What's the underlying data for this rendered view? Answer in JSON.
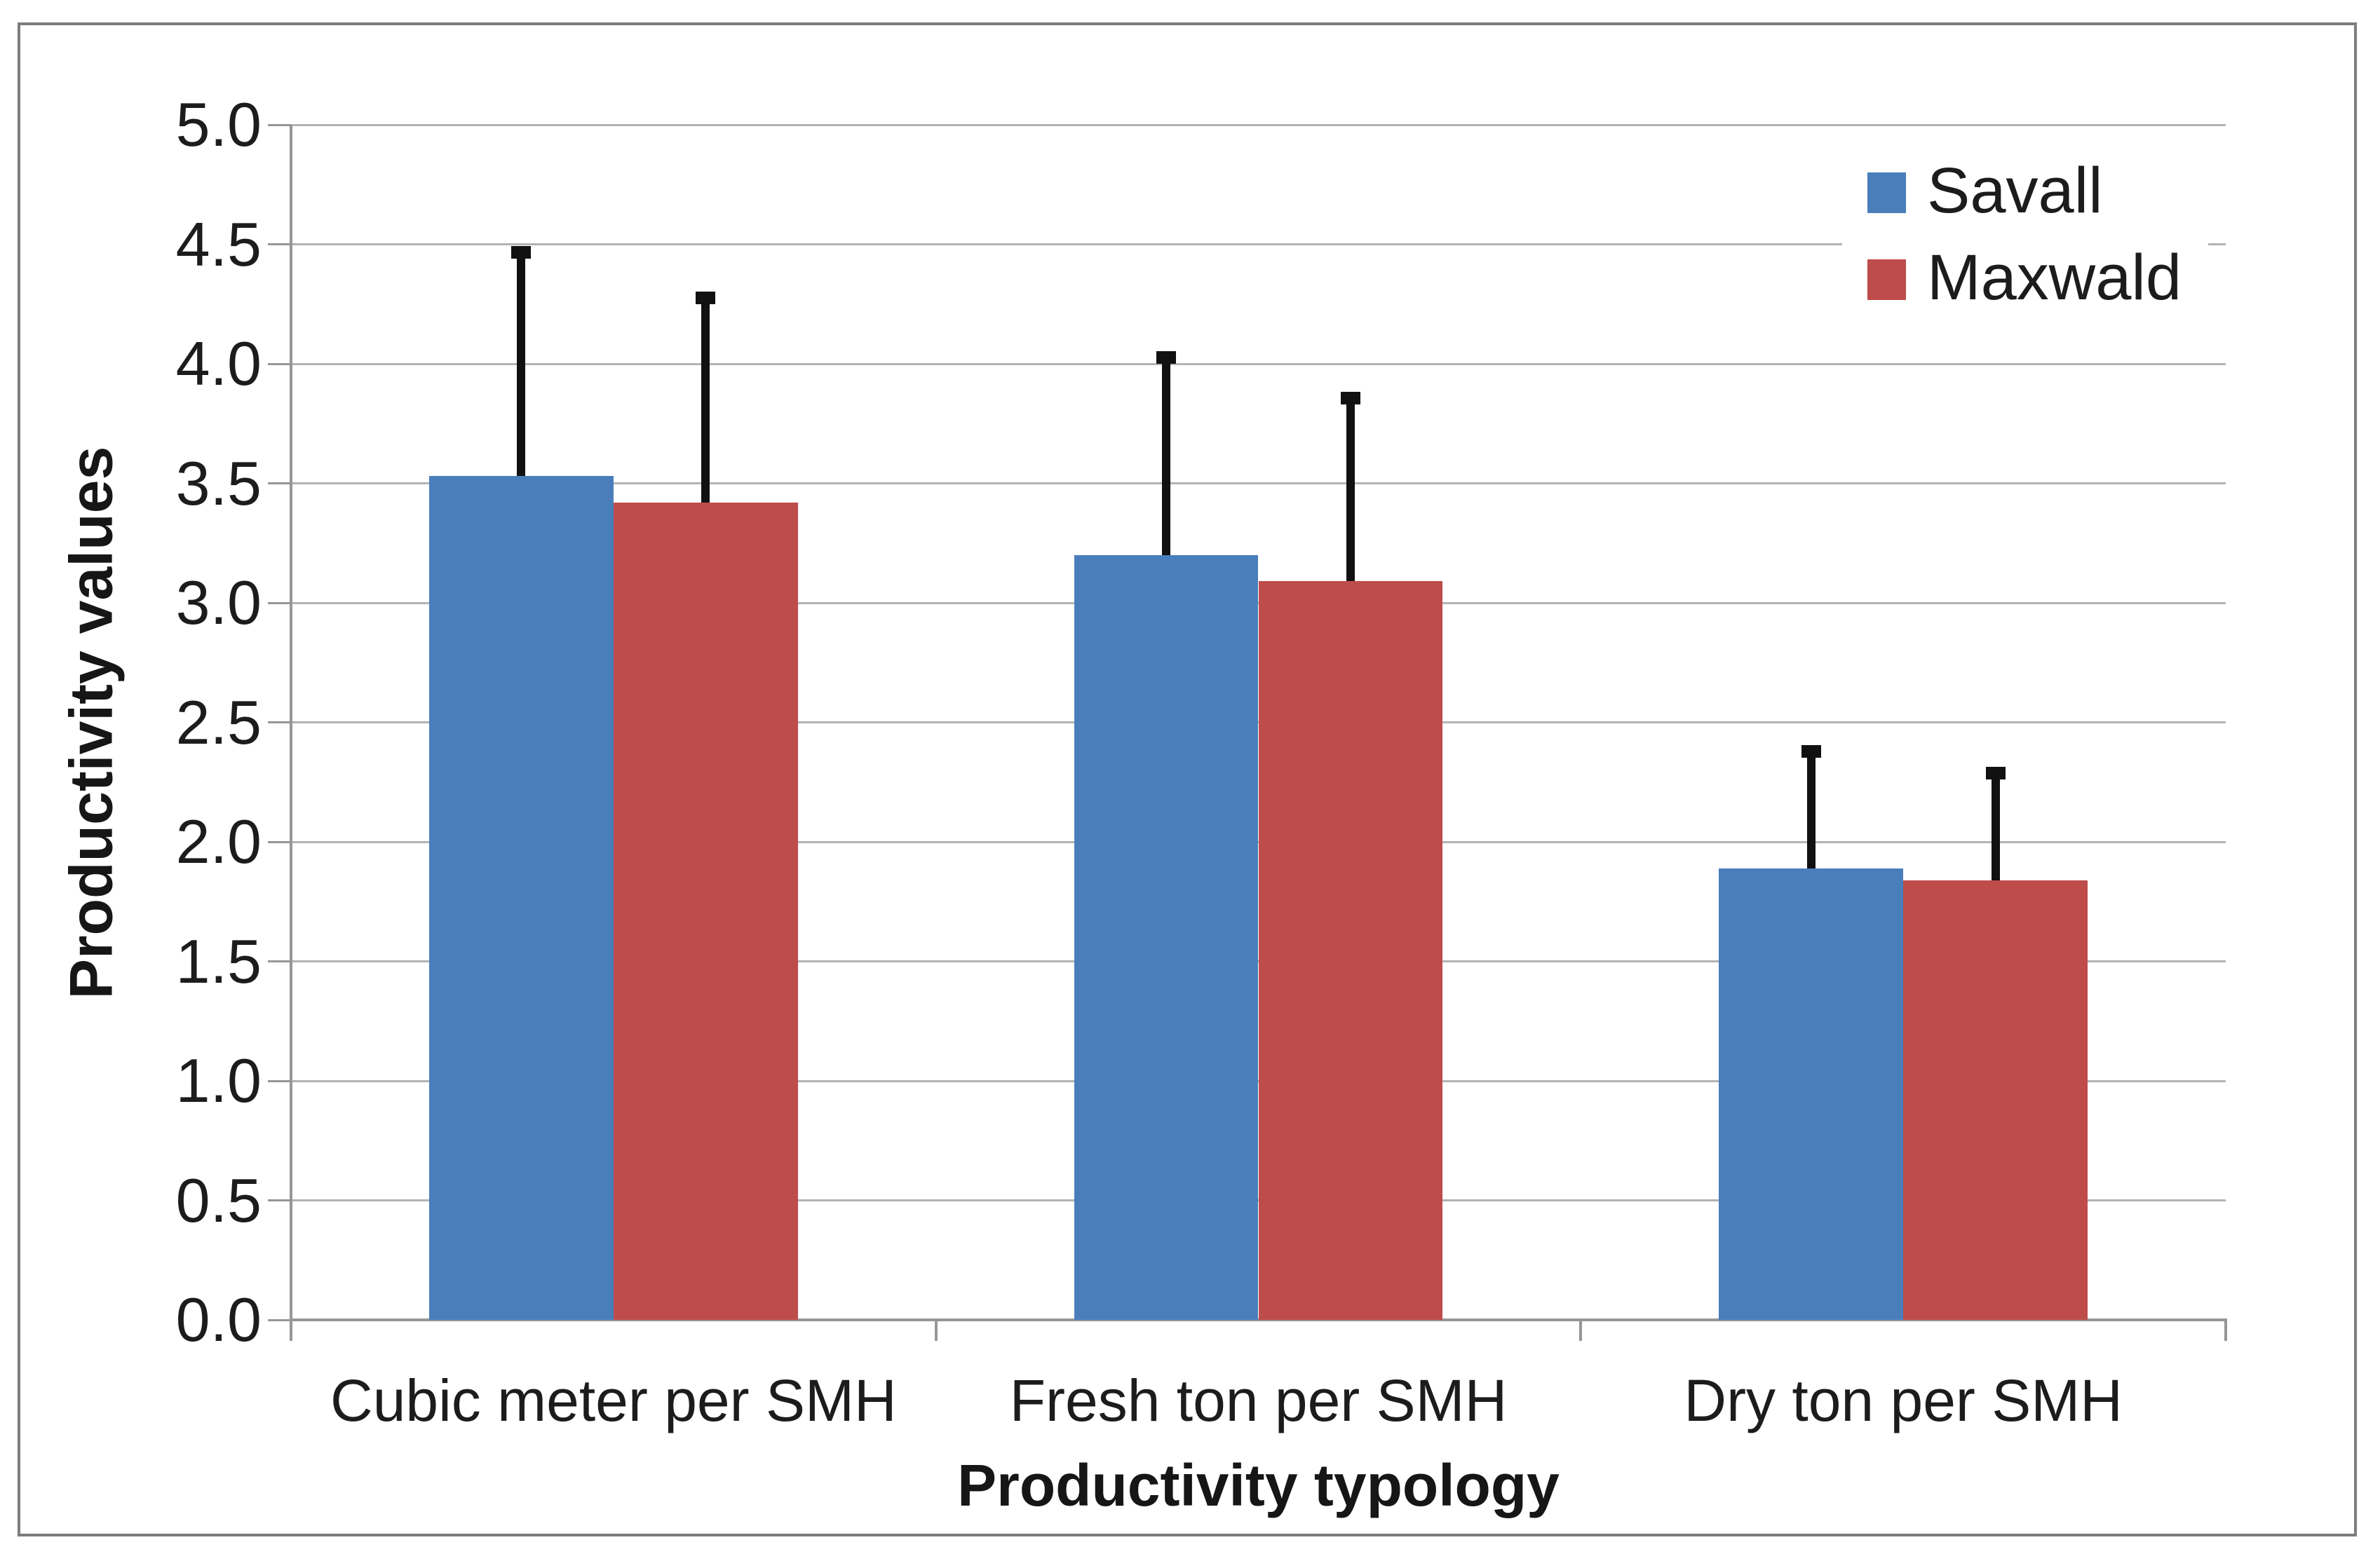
{
  "figure": {
    "frame_border_color": "#7d7d7d",
    "background_color": "#ffffff",
    "gridline_color": "#b3b3b3",
    "axis_line_color": "#969696",
    "error_bar_color": "#111111",
    "text_color": "#1c1c1c"
  },
  "chart_data": {
    "type": "bar",
    "title": "",
    "categories": [
      "Cubic meter per SMH",
      "Fresh ton per SMH",
      "Dry ton per SMH"
    ],
    "series": [
      {
        "name": "Savall",
        "color": "#4A7EBB",
        "values": [
          3.53,
          3.2,
          1.89
        ],
        "error_plus": [
          0.94,
          0.83,
          0.49
        ]
      },
      {
        "name": "Maxwald",
        "color": "#BE4C4A",
        "values": [
          3.42,
          3.09,
          1.84
        ],
        "error_plus": [
          0.86,
          0.77,
          0.45
        ]
      }
    ],
    "xlabel": "Productivity typology",
    "ylabel": "Productivity values",
    "ylim": [
      0,
      5
    ],
    "ytick_step": 0.5,
    "ytick_labels": [
      "0.0",
      "0.5",
      "1.0",
      "1.5",
      "2.0",
      "2.5",
      "3.0",
      "3.5",
      "4.0",
      "4.5",
      "5.0"
    ],
    "grid": "horizontal-only",
    "legend_position": "top-right-inside",
    "error_bars": "upper-only",
    "bar_gap_ratio": 1.5
  }
}
